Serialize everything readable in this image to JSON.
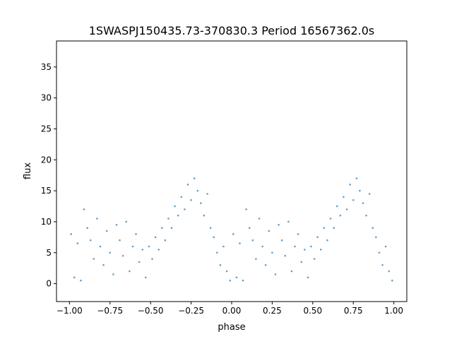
{
  "chart_data": {
    "type": "scatter",
    "title": "1SWASPJ150435.73-370830.3 Period 16567362.0s",
    "xlabel": "phase",
    "ylabel": "flux",
    "xlim": [
      -1.08,
      1.08
    ],
    "ylim": [
      -2.9,
      39.2
    ],
    "xticks": [
      -1.0,
      -0.75,
      -0.5,
      -0.25,
      0.0,
      0.25,
      0.5,
      0.75,
      1.0
    ],
    "xtick_labels": [
      "−1.00",
      "−0.75",
      "−0.50",
      "−0.25",
      "0.00",
      "0.25",
      "0.50",
      "0.75",
      "1.00"
    ],
    "yticks": [
      0,
      5,
      10,
      15,
      20,
      25,
      30,
      35
    ],
    "ytick_labels": [
      "0",
      "5",
      "10",
      "15",
      "20",
      "25",
      "30",
      "35"
    ],
    "grid": false,
    "marker_color": "#1f77b4",
    "x": [
      -0.99,
      -0.97,
      -0.95,
      -0.93,
      -0.91,
      -0.89,
      -0.87,
      -0.85,
      -0.83,
      -0.81,
      -0.79,
      -0.77,
      -0.75,
      -0.73,
      -0.71,
      -0.69,
      -0.67,
      -0.65,
      -0.63,
      -0.61,
      -0.59,
      -0.57,
      -0.55,
      -0.53,
      -0.51,
      -0.49,
      -0.47,
      -0.45,
      -0.43,
      -0.41,
      -0.39,
      -0.37,
      -0.35,
      -0.33,
      -0.31,
      -0.29,
      -0.27,
      -0.25,
      -0.23,
      -0.21,
      -0.19,
      -0.17,
      -0.15,
      -0.13,
      -0.11,
      -0.09,
      -0.07,
      -0.05,
      -0.03,
      -0.01,
      0.01,
      0.03,
      0.05,
      0.07,
      0.09,
      0.11,
      0.13,
      0.15,
      0.17,
      0.19,
      0.21,
      0.23,
      0.25,
      0.27,
      0.29,
      0.31,
      0.33,
      0.35,
      0.37,
      0.39,
      0.41,
      0.43,
      0.45,
      0.47,
      0.49,
      0.51,
      0.53,
      0.55,
      0.57,
      0.59,
      0.61,
      0.63,
      0.65,
      0.67,
      0.69,
      0.71,
      0.73,
      0.75,
      0.77,
      0.79,
      0.81,
      0.83,
      0.85,
      0.87,
      0.89,
      0.91,
      0.93,
      0.95,
      0.97,
      0.99
    ],
    "y": [
      8.0,
      1.0,
      6.5,
      0.5,
      12.0,
      9.0,
      7.0,
      4.0,
      10.5,
      6.0,
      3.0,
      8.5,
      5.0,
      1.5,
      9.5,
      7.0,
      4.5,
      10.0,
      2.0,
      6.0,
      8.0,
      3.5,
      5.5,
      1.0,
      6.0,
      4.0,
      7.5,
      5.5,
      9.0,
      7.0,
      10.5,
      9.0,
      12.5,
      11.0,
      14.0,
      12.0,
      16.0,
      13.5,
      17.0,
      15.0,
      13.0,
      11.0,
      14.5,
      9.0,
      7.5,
      5.0,
      3.0,
      6.0,
      2.0,
      0.5,
      8.0,
      1.0,
      6.5,
      0.5,
      12.0,
      9.0,
      7.0,
      4.0,
      10.5,
      6.0,
      3.0,
      8.5,
      5.0,
      1.5,
      9.5,
      7.0,
      4.5,
      10.0,
      2.0,
      6.0,
      8.0,
      3.5,
      5.5,
      1.0,
      6.0,
      4.0,
      7.5,
      5.5,
      9.0,
      7.0,
      10.5,
      9.0,
      12.5,
      11.0,
      14.0,
      12.0,
      16.0,
      13.5,
      17.0,
      15.0,
      13.0,
      11.0,
      14.5,
      9.0,
      7.5,
      5.0,
      3.0,
      6.0,
      2.0,
      0.5
    ]
  }
}
